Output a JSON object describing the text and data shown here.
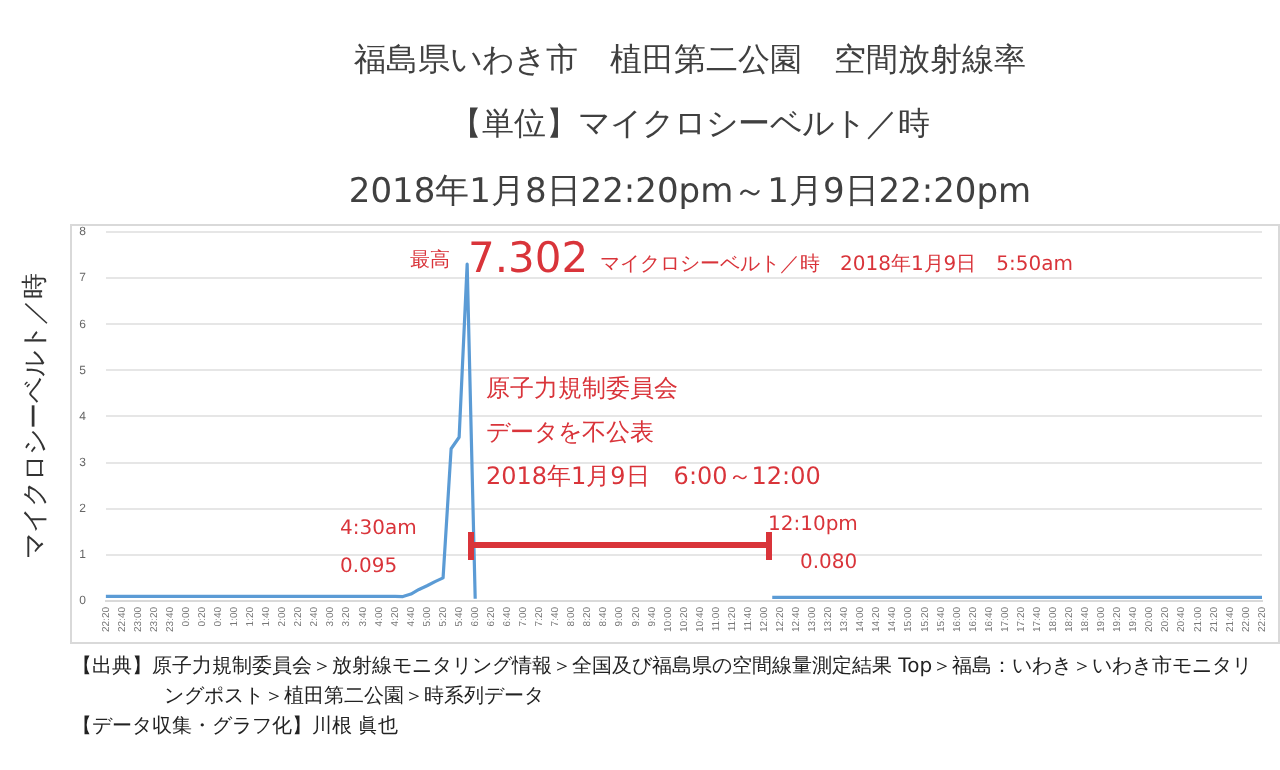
{
  "chart_data": {
    "type": "line",
    "title": "福島県いわき市　植田第二公園　空間放射線率",
    "subtitle": "【単位】マイクロシーベルト／時",
    "ylabel": "マイクロシーベルト／時",
    "categories": [
      "22:20",
      null,
      "22:40",
      null,
      "23:00",
      null,
      "23:20",
      null,
      "23:40",
      null,
      "0:00",
      null,
      "0:20",
      null,
      "0:40",
      null,
      "1:00",
      null,
      "1:20",
      null,
      "1:40",
      null,
      "2:00",
      null,
      "2:20",
      null,
      "2:40",
      null,
      "3:00",
      null,
      "3:20",
      null,
      "3:40",
      null,
      "4:00",
      null,
      "4:20",
      null,
      "4:40",
      null,
      "5:00",
      null,
      "5:20",
      null,
      "5:40",
      null,
      "6:00",
      null,
      "6:20",
      null,
      "6:40",
      null,
      "7:00",
      null,
      "7:20",
      null,
      "7:40",
      null,
      "8:00",
      null,
      "8:20",
      null,
      "8:40",
      null,
      "9:00",
      null,
      "9:20",
      null,
      "9:40",
      null,
      "10:00",
      null,
      "10:20",
      null,
      "10:40",
      null,
      "11:00",
      null,
      "11:20",
      null,
      "11:40",
      null,
      "12:00",
      null,
      "12:20",
      null,
      "12:40",
      null,
      "13:00",
      null,
      "13:20",
      null,
      "13:40",
      null,
      "14:00",
      null,
      "14:20",
      null,
      "14:40",
      null,
      "15:00",
      null,
      "15:20",
      null,
      "15:40",
      null,
      "16:00",
      null,
      "16:20",
      null,
      "16:40",
      null,
      "17:00",
      null,
      "17:20",
      null,
      "17:40",
      null,
      "18:00",
      null,
      "18:20",
      null,
      "18:40",
      null,
      "19:00",
      null,
      "19:20",
      null,
      "19:40",
      null,
      "20:00",
      null,
      "20:20",
      null,
      "20:40",
      null,
      "21:00",
      null,
      "21:20",
      null,
      "21:40",
      null,
      "22:00",
      null,
      "22:20"
    ],
    "series": [
      {
        "color": "#5b9bd5",
        "values": [
          0.1,
          0.1,
          0.1,
          0.1,
          0.1,
          0.1,
          0.1,
          0.1,
          0.1,
          0.1,
          0.1,
          0.1,
          0.1,
          0.1,
          0.1,
          0.1,
          0.1,
          0.1,
          0.1,
          0.1,
          0.1,
          0.1,
          0.1,
          0.1,
          0.1,
          0.1,
          0.1,
          0.1,
          0.1,
          0.1,
          0.1,
          0.1,
          0.1,
          0.1,
          0.1,
          0.1,
          0.1,
          0.095,
          0.15,
          0.25,
          0.33,
          0.42,
          0.5,
          3.3,
          3.55,
          7.302,
          0.05,
          null,
          null,
          null,
          null,
          null,
          null,
          null,
          null,
          null,
          null,
          null,
          null,
          null,
          null,
          null,
          null,
          null,
          null,
          null,
          null,
          null,
          null,
          null,
          null,
          null,
          null,
          null,
          null,
          null,
          null,
          null,
          null,
          null,
          null,
          null,
          null,
          0.08,
          0.08,
          0.08,
          0.08,
          0.08,
          0.08,
          0.08,
          0.08,
          0.08,
          0.08,
          0.08,
          0.08,
          0.08,
          0.08,
          0.08,
          0.08,
          0.08,
          0.08,
          0.08,
          0.08,
          0.08,
          0.08,
          0.08,
          0.08,
          0.08,
          0.08,
          0.08,
          0.08,
          0.08,
          0.08,
          0.08,
          0.08,
          0.08,
          0.08,
          0.08,
          0.08,
          0.08,
          0.08,
          0.08,
          0.08,
          0.08,
          0.08,
          0.08,
          0.08,
          0.08,
          0.08,
          0.08,
          0.08,
          0.08,
          0.08,
          0.08,
          0.08,
          0.08,
          0.08,
          0.08,
          0.08,
          0.08,
          0.08,
          0.08,
          0.08,
          0.08,
          0.08
        ]
      }
    ],
    "ylim": [
      0,
      8
    ],
    "yticks": [
      0,
      1,
      2,
      3,
      4,
      5,
      6,
      7,
      8
    ],
    "grid": "y",
    "marker": "none",
    "line_style": "solid",
    "legend": false,
    "annotations": [
      "2018年1月8日22:20pm～1月9日22:20pm",
      "最高",
      "7.302",
      "マイクロシーベルト／時　2018年1月9日　5:50am",
      "原子力規制委員会",
      "データを不公表",
      "2018年1月9日　6:00～12:00",
      "4:30am",
      "0.095",
      "12:10pm",
      "0.080",
      "【出典】原子力規制委員会＞放射線モニタリング情報＞全国及び福島県の空間線量測定結果 Top＞福島：いわき＞いわき市モニタリングポスト＞植田第二公園＞時系列データ",
      "【データ収集・グラフ化】川根 眞也"
    ]
  }
}
